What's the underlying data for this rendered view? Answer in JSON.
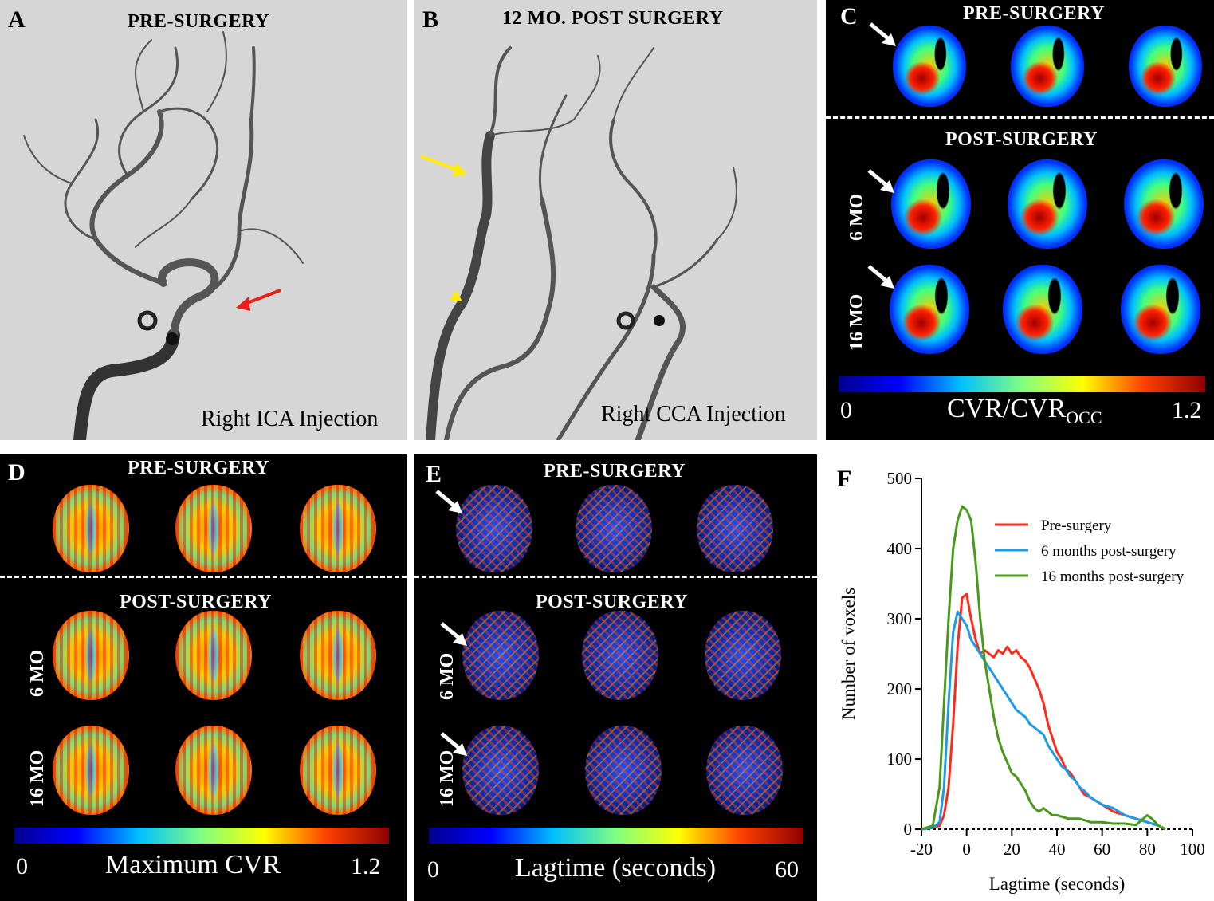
{
  "panelA": {
    "label": "A",
    "title": "PRE-SURGERY",
    "caption": "Right ICA Injection"
  },
  "panelB": {
    "label": "B",
    "title": "12 MO. POST SURGERY",
    "caption": "Right CCA Injection"
  },
  "panelC": {
    "label": "C",
    "title_pre": "PRE-SURGERY",
    "title_post": "POST-SURGERY",
    "row1": "6 MO",
    "row2": "16 MO",
    "cbar_min": "0",
    "cbar_max": "1.2",
    "cbar_title": "CVR/CVR",
    "cbar_sub": "OCC"
  },
  "panelD": {
    "label": "D",
    "title_pre": "PRE-SURGERY",
    "title_post": "POST-SURGERY",
    "row1": "6 MO",
    "row2": "16 MO",
    "cbar_min": "0",
    "cbar_max": "1.2",
    "cbar_title": "Maximum CVR"
  },
  "panelE": {
    "label": "E",
    "title_pre": "PRE-SURGERY",
    "title_post": "POST-SURGERY",
    "row1": "6 MO",
    "row2": "16 MO",
    "cbar_min": "0",
    "cbar_max": "60",
    "cbar_title": "Lagtime (seconds)"
  },
  "colors": {
    "arrow_red": "#e8201c",
    "arrow_yellow": "#ffee00",
    "jet": [
      "#00008f",
      "#0000ff",
      "#00c0ff",
      "#80ff80",
      "#ffff00",
      "#ff4000",
      "#8f0000"
    ]
  },
  "chart_data": {
    "panel_label": "F",
    "type": "line",
    "xlabel": "Lagtime (seconds)",
    "ylabel": "Number of voxels",
    "xlim": [
      -20,
      100
    ],
    "ylim": [
      0,
      500
    ],
    "xticks": [
      -20,
      0,
      20,
      40,
      60,
      80,
      100
    ],
    "yticks": [
      0,
      100,
      200,
      300,
      400,
      500
    ],
    "legend_position": "top-right",
    "series": [
      {
        "name": "Pre-surgery",
        "color": "#ff2a1a",
        "x": [
          -20,
          -15,
          -12,
          -10,
          -8,
          -6,
          -4,
          -2,
          0,
          2,
          4,
          6,
          8,
          10,
          12,
          14,
          16,
          18,
          20,
          22,
          24,
          26,
          28,
          30,
          32,
          34,
          36,
          38,
          40,
          42,
          44,
          46,
          48,
          50,
          52,
          55,
          60,
          65,
          70,
          75,
          80,
          85,
          88
        ],
        "y": [
          0,
          2,
          5,
          20,
          60,
          150,
          260,
          330,
          335,
          300,
          270,
          250,
          255,
          250,
          245,
          255,
          250,
          260,
          250,
          255,
          245,
          240,
          230,
          215,
          200,
          180,
          150,
          130,
          110,
          100,
          85,
          80,
          70,
          60,
          50,
          45,
          35,
          25,
          20,
          15,
          10,
          5,
          0
        ]
      },
      {
        "name": "6 months post-surgery",
        "color": "#1e9be8",
        "x": [
          -20,
          -15,
          -12,
          -10,
          -8,
          -6,
          -4,
          -2,
          0,
          2,
          4,
          6,
          8,
          10,
          12,
          14,
          16,
          18,
          20,
          22,
          24,
          26,
          28,
          30,
          32,
          34,
          36,
          38,
          40,
          42,
          44,
          46,
          48,
          50,
          52,
          55,
          60,
          65,
          70,
          75,
          80,
          85,
          88
        ],
        "y": [
          0,
          2,
          10,
          60,
          180,
          280,
          310,
          300,
          290,
          270,
          260,
          250,
          240,
          230,
          220,
          210,
          200,
          190,
          180,
          170,
          165,
          160,
          150,
          145,
          140,
          135,
          120,
          110,
          100,
          90,
          85,
          75,
          70,
          60,
          55,
          45,
          35,
          30,
          20,
          15,
          10,
          5,
          0
        ]
      },
      {
        "name": "16 months post-surgery",
        "color": "#4a9a1a",
        "x": [
          -20,
          -15,
          -12,
          -10,
          -8,
          -6,
          -4,
          -2,
          0,
          2,
          4,
          6,
          8,
          10,
          12,
          14,
          16,
          18,
          20,
          22,
          24,
          26,
          28,
          30,
          32,
          34,
          36,
          38,
          40,
          45,
          50,
          55,
          60,
          65,
          70,
          75,
          80,
          82,
          85,
          88
        ],
        "y": [
          0,
          5,
          60,
          180,
          300,
          400,
          440,
          460,
          455,
          440,
          380,
          300,
          240,
          200,
          160,
          130,
          110,
          95,
          80,
          75,
          65,
          55,
          40,
          30,
          25,
          30,
          25,
          20,
          20,
          15,
          15,
          10,
          10,
          8,
          8,
          6,
          20,
          15,
          5,
          0
        ]
      }
    ]
  }
}
